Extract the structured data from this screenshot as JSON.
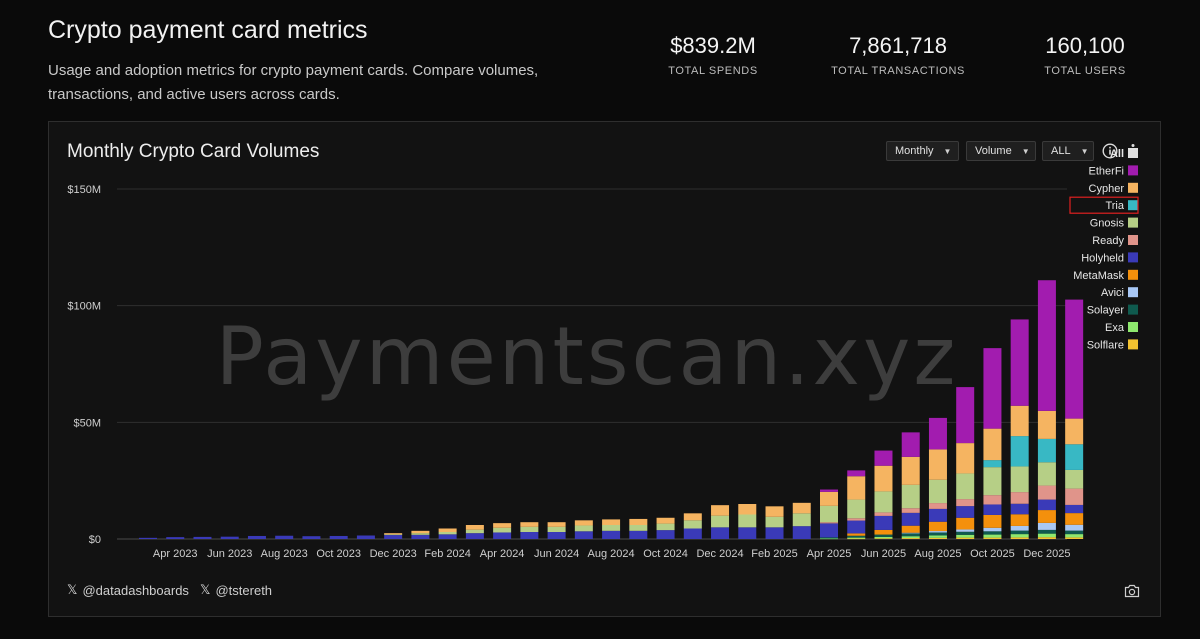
{
  "header": {
    "title": "Crypto payment card metrics",
    "description": "Usage and adoption metrics for crypto payment cards. Compare volumes, transactions, and active users across cards."
  },
  "stats": [
    {
      "value": "$839.2M",
      "label": "TOTAL SPENDS"
    },
    {
      "value": "7,861,718",
      "label": "TOTAL TRANSACTIONS"
    },
    {
      "value": "160,100",
      "label": "TOTAL USERS"
    }
  ],
  "card": {
    "title": "Monthly Crypto Card Volumes",
    "controls": {
      "period": "Monthly",
      "metric": "Volume",
      "range": "ALL"
    },
    "info_icon": "info-icon",
    "menu_icon": "more-vertical-icon",
    "watermark": "Paymentscan.xyz",
    "footer": {
      "handle1": "@datadashboards",
      "handle2": "@tstereth",
      "camera_icon": "camera-icon"
    }
  },
  "chart_data": {
    "type": "bar",
    "stacked": true,
    "title": "Monthly Crypto Card Volumes",
    "ylim": [
      0,
      150
    ],
    "y_unit": "$M",
    "y_ticks": [
      "$0",
      "$50M",
      "$100M",
      "$150M"
    ],
    "y_tick_values": [
      0,
      50,
      100,
      150
    ],
    "x_tick_labels": [
      "Apr 2023",
      "Jun 2023",
      "Aug 2023",
      "Oct 2023",
      "Dec 2023",
      "Feb 2024",
      "Apr 2024",
      "Jun 2024",
      "Aug 2024",
      "Oct 2024",
      "Dec 2024",
      "Feb 2025",
      "Apr 2025",
      "Jun 2025",
      "Aug 2025",
      "Oct 2025",
      "Dec 2025"
    ],
    "categories": [
      "Mar 2023",
      "Apr 2023",
      "May 2023",
      "Jun 2023",
      "Jul 2023",
      "Aug 2023",
      "Sep 2023",
      "Oct 2023",
      "Nov 2023",
      "Dec 2023",
      "Jan 2024",
      "Feb 2024",
      "Mar 2024",
      "Apr 2024",
      "May 2024",
      "Jun 2024",
      "Jul 2024",
      "Aug 2024",
      "Sep 2024",
      "Oct 2024",
      "Nov 2024",
      "Dec 2024",
      "Jan 2025",
      "Feb 2025",
      "Mar 2025",
      "Apr 2025",
      "May 2025",
      "Jun 2025",
      "Jul 2025",
      "Aug 2025",
      "Sep 2025",
      "Oct 2025",
      "Nov 2025",
      "Dec 2025",
      "Jan 2026"
    ],
    "legend": {
      "placement": "right",
      "entries": [
        "All",
        "EtherFi",
        "Cypher",
        "Tria",
        "Gnosis",
        "Ready",
        "Holyheld",
        "MetaMask",
        "Avici",
        "Solayer",
        "Exa",
        "Solflare"
      ],
      "highlighted": "Tria"
    },
    "colors": {
      "All": "#e0e0e0",
      "EtherFi": "#a21caf",
      "Cypher": "#f5b461",
      "Tria": "#38b8c4",
      "Gnosis": "#b6cf86",
      "Ready": "#e0948a",
      "Holyheld": "#3a3ab8",
      "MetaMask": "#f4900c",
      "Avici": "#a9c8f5",
      "Solayer": "#0f5a4e",
      "Exa": "#8ee86e",
      "Solflare": "#f2c230"
    },
    "series": [
      {
        "name": "Solflare",
        "values": [
          0,
          0,
          0,
          0,
          0,
          0,
          0,
          0,
          0,
          0,
          0,
          0,
          0,
          0,
          0,
          0,
          0,
          0,
          0,
          0,
          0,
          0,
          0,
          0,
          0,
          0,
          0.2,
          0.3,
          0.4,
          0.5,
          0.6,
          0.6,
          0.7,
          0.8,
          0.7
        ]
      },
      {
        "name": "Exa",
        "values": [
          0,
          0,
          0,
          0,
          0,
          0,
          0,
          0,
          0,
          0,
          0,
          0,
          0,
          0,
          0,
          0,
          0,
          0,
          0,
          0,
          0,
          0,
          0,
          0,
          0,
          0.2,
          0.4,
          0.6,
          0.8,
          1.0,
          1.2,
          1.3,
          1.4,
          1.5,
          1.4
        ]
      },
      {
        "name": "Solayer",
        "values": [
          0,
          0,
          0,
          0,
          0,
          0,
          0,
          0,
          0,
          0,
          0,
          0,
          0,
          0,
          0,
          0,
          0,
          0,
          0,
          0,
          0,
          0,
          0,
          0,
          0,
          0.5,
          0.8,
          1.0,
          1.2,
          1.3,
          1.3,
          1.4,
          1.5,
          1.6,
          1.5
        ]
      },
      {
        "name": "Avici",
        "values": [
          0,
          0,
          0,
          0,
          0,
          0,
          0,
          0,
          0,
          0,
          0,
          0,
          0,
          0,
          0,
          0,
          0,
          0,
          0,
          0,
          0,
          0,
          0,
          0,
          0,
          0,
          0,
          0,
          0.3,
          0.6,
          1.0,
          1.5,
          2.0,
          3.0,
          2.5
        ]
      },
      {
        "name": "MetaMask",
        "values": [
          0,
          0,
          0,
          0,
          0,
          0,
          0,
          0,
          0,
          0,
          0,
          0,
          0,
          0,
          0,
          0,
          0,
          0,
          0,
          0,
          0,
          0,
          0,
          0,
          0,
          0,
          1.0,
          2.0,
          3.0,
          4.0,
          5.0,
          5.5,
          5.0,
          5.5,
          5.0
        ]
      },
      {
        "name": "Holyheld",
        "values": [
          0.5,
          0.8,
          0.9,
          1.0,
          1.3,
          1.4,
          1.2,
          1.3,
          1.5,
          1.7,
          1.8,
          2.0,
          2.5,
          2.8,
          3.0,
          3.0,
          3.3,
          3.5,
          3.5,
          3.8,
          4.5,
          5.0,
          5.0,
          5.0,
          5.5,
          6.0,
          5.5,
          6.0,
          5.5,
          5.5,
          5.0,
          4.5,
          4.5,
          4.5,
          3.5
        ]
      },
      {
        "name": "Ready",
        "values": [
          0,
          0,
          0,
          0,
          0,
          0,
          0,
          0,
          0,
          0,
          0,
          0,
          0,
          0,
          0,
          0,
          0,
          0,
          0,
          0,
          0,
          0,
          0,
          0,
          0,
          0.5,
          1.0,
          1.5,
          2.0,
          2.5,
          3.0,
          4.0,
          5.0,
          6.0,
          7.0
        ]
      },
      {
        "name": "Gnosis",
        "values": [
          0,
          0,
          0,
          0,
          0,
          0,
          0,
          0,
          0,
          0.3,
          0.7,
          1.0,
          1.5,
          2.0,
          2.2,
          2.2,
          2.5,
          2.5,
          2.5,
          2.8,
          3.5,
          5.0,
          5.5,
          4.5,
          5.5,
          7.0,
          8.0,
          9.0,
          10.0,
          10.0,
          11.0,
          12.0,
          11.0,
          10.0,
          8.0
        ]
      },
      {
        "name": "Tria",
        "values": [
          0,
          0,
          0,
          0,
          0,
          0,
          0,
          0,
          0,
          0,
          0,
          0,
          0,
          0,
          0,
          0,
          0,
          0,
          0,
          0,
          0,
          0,
          0,
          0,
          0,
          0,
          0,
          0,
          0,
          0,
          0,
          3.0,
          13.0,
          10.0,
          11.0
        ]
      },
      {
        "name": "Cypher",
        "values": [
          0,
          0,
          0,
          0,
          0,
          0,
          0,
          0,
          0,
          0.5,
          1.0,
          1.5,
          2.0,
          2.0,
          2.0,
          2.0,
          2.2,
          2.4,
          2.6,
          2.5,
          3.0,
          4.5,
          4.5,
          4.5,
          4.5,
          6.0,
          10.0,
          11.0,
          12.0,
          13.0,
          13.0,
          13.5,
          13.0,
          12.0,
          11.0
        ]
      },
      {
        "name": "EtherFi",
        "values": [
          0,
          0,
          0,
          0,
          0,
          0,
          0,
          0,
          0,
          0,
          0,
          0,
          0,
          0,
          0,
          0,
          0,
          0,
          0,
          0,
          0,
          0,
          0,
          0,
          0,
          1.0,
          2.5,
          6.5,
          10.5,
          13.5,
          24.0,
          34.5,
          37.0,
          56.0,
          51.0
        ]
      }
    ]
  }
}
